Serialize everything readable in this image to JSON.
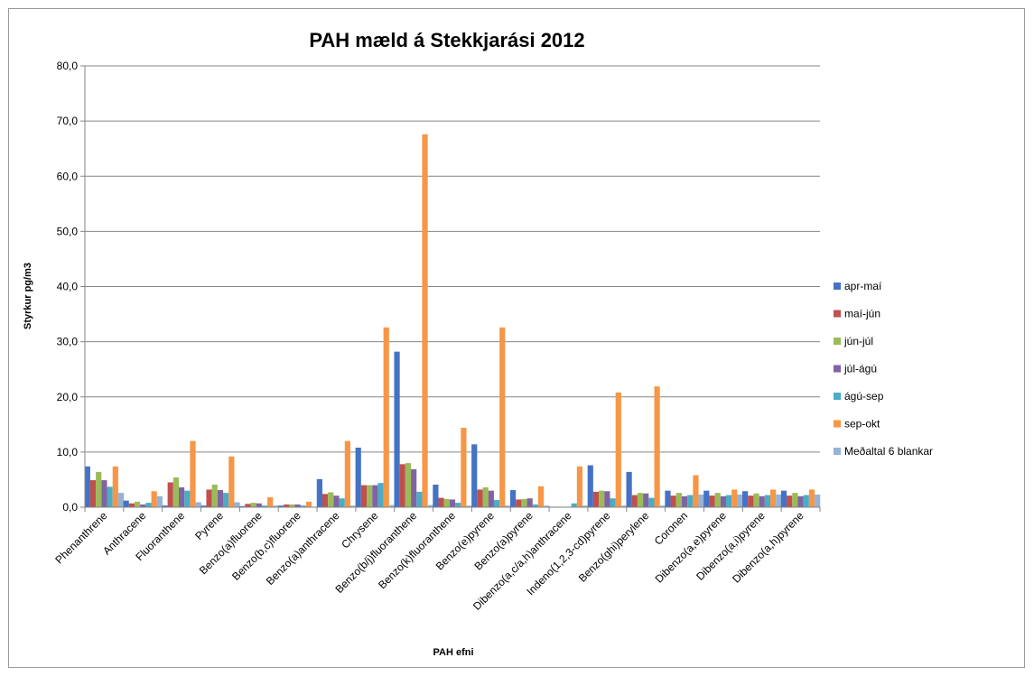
{
  "chart_data": {
    "type": "bar",
    "title": "PAH mæld á Stekkjarási 2012",
    "xlabel": "PAH efni",
    "ylabel": "Styrkur pg/m3",
    "ylim": [
      0,
      80
    ],
    "yticks": [
      "0,0",
      "10,0",
      "20,0",
      "30,0",
      "40,0",
      "50,0",
      "60,0",
      "70,0",
      "80,0"
    ],
    "grid": true,
    "legend_position": "right",
    "categories": [
      "Phenanthrene",
      "Anthracene",
      "Fluoranthene",
      "Pyrene",
      "Benzo(a)fluorene",
      "Benzo(b,c)fluorene",
      "Benzo(a)anthracene",
      "Chrysene",
      "Benzo(b/j)fluoranthene",
      "Benzo(k)fluoranthene",
      "Benzo(e)pyrene",
      "Benzo(a)pyrene",
      "Dibenzo(a,c/a,h)anthracene",
      "Indeno(1,2,3-cd)pyrene",
      "Benzo(ghi)perylene",
      "Coronen",
      "Dibenzo(a,e)pyrene",
      "Dibenzo(a,i)pyrene",
      "Dibenzo(a,h)pyrene"
    ],
    "series": [
      {
        "name": "apr-maí",
        "color": "#4472C4",
        "values": [
          7.4,
          1.2,
          0.3,
          0.3,
          0.2,
          0.3,
          5.1,
          10.8,
          28.2,
          4.1,
          11.4,
          3.1,
          0.1,
          7.6,
          6.4,
          3.0,
          3.0,
          2.9,
          3.0
        ]
      },
      {
        "name": "maí-jún",
        "color": "#C0504D",
        "values": [
          4.9,
          0.7,
          4.5,
          3.2,
          0.6,
          0.5,
          2.4,
          4.0,
          7.8,
          1.7,
          3.2,
          1.4,
          0.1,
          2.8,
          2.2,
          2.1,
          2.1,
          2.1,
          2.1
        ]
      },
      {
        "name": "jún-júl",
        "color": "#9BBB59",
        "values": [
          6.4,
          1.0,
          5.4,
          4.1,
          0.8,
          0.5,
          2.7,
          4.0,
          8.0,
          1.5,
          3.6,
          1.5,
          0.1,
          3.0,
          2.6,
          2.6,
          2.6,
          2.5,
          2.6
        ]
      },
      {
        "name": "júl-ágú",
        "color": "#8064A2",
        "values": [
          4.9,
          0.5,
          3.6,
          3.1,
          0.7,
          0.5,
          2.1,
          4.0,
          6.9,
          1.4,
          3.0,
          1.6,
          0.1,
          2.9,
          2.5,
          2.0,
          2.0,
          2.0,
          2.0
        ]
      },
      {
        "name": "ágú-sep",
        "color": "#4BACC6",
        "values": [
          3.7,
          0.8,
          3.0,
          2.6,
          0.3,
          0.3,
          1.6,
          4.4,
          2.8,
          0.8,
          1.3,
          0.5,
          0.7,
          1.6,
          1.7,
          2.2,
          2.2,
          2.2,
          2.2
        ]
      },
      {
        "name": "sep-okt",
        "color": "#F79646",
        "values": [
          7.4,
          2.9,
          12.0,
          9.2,
          1.8,
          1.0,
          12.0,
          32.6,
          67.6,
          14.4,
          32.6,
          3.8,
          7.4,
          20.8,
          21.9,
          5.8,
          3.2,
          3.2,
          3.2
        ]
      },
      {
        "name": "Meðaltal 6 blankar",
        "color": "#95B3D7",
        "values": [
          2.6,
          2.0,
          0.9,
          0.9,
          0.3,
          0.1,
          0.3,
          0.4,
          0.4,
          0.3,
          0.3,
          0.3,
          0.3,
          0.3,
          0.3,
          2.3,
          2.3,
          2.3,
          2.3
        ]
      }
    ]
  }
}
